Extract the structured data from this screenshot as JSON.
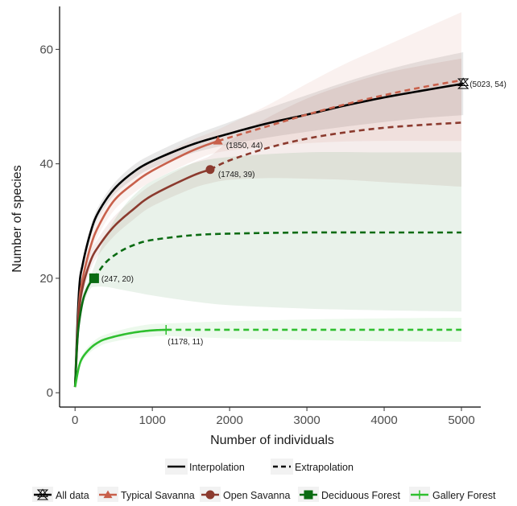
{
  "chart_data": {
    "type": "line",
    "title": "",
    "xlabel": "Number of individuals",
    "ylabel": "Number of species",
    "xlim": [
      -200,
      5250
    ],
    "ylim": [
      -2.5,
      67.5
    ],
    "x_ticks": [
      0,
      1000,
      2000,
      3000,
      4000,
      5000
    ],
    "y_ticks": [
      0,
      20,
      40,
      60
    ],
    "x_tick_labels": [
      "0",
      "1000",
      "2000",
      "3000",
      "4000",
      "5000"
    ],
    "y_tick_labels": [
      "0",
      "20",
      "40",
      "60"
    ],
    "grid": false,
    "legend_position": "bottom",
    "linetype_legend": [
      {
        "label": "Interpolation",
        "style": "solid"
      },
      {
        "label": "Extrapolation",
        "style": "dashed"
      }
    ],
    "series": [
      {
        "name": "All data",
        "color": "#000000",
        "marker": "hourglass",
        "observed": [
          5023,
          54
        ],
        "observed_label": "(5023, 54)",
        "extrapolated": false,
        "x": [
          0,
          50,
          100,
          200,
          300,
          500,
          750,
          1000,
          1500,
          2000,
          2500,
          3000,
          3500,
          4000,
          4500,
          5023
        ],
        "y": [
          1,
          17.5,
          22.5,
          28,
          31.5,
          35.5,
          38.5,
          40.5,
          43.3,
          45.3,
          47.1,
          48.6,
          50.2,
          51.6,
          52.8,
          54
        ],
        "ci_lower": [
          1,
          16.5,
          21.5,
          27,
          30.5,
          34.5,
          37.3,
          39.3,
          41.8,
          43.4,
          44.6,
          45.6,
          46.5,
          47.3,
          48,
          48.5
        ],
        "ci_upper": [
          1,
          18.5,
          23.5,
          29,
          32.5,
          36.5,
          39.7,
          41.7,
          44.8,
          47.3,
          49.7,
          52,
          54.3,
          56.3,
          58,
          59.5
        ]
      },
      {
        "name": "Typical Savanna",
        "color": "#c8604b",
        "marker": "triangle",
        "observed": [
          1850,
          44
        ],
        "observed_label": "(1850, 44)",
        "extrapolated": true,
        "x": [
          0,
          50,
          100,
          200,
          300,
          500,
          750,
          1000,
          1500,
          1850,
          2500,
          3000,
          3500,
          4000,
          4500,
          5000
        ],
        "y": [
          1,
          15,
          20,
          25.5,
          29,
          33.5,
          36.5,
          38.8,
          42.2,
          44,
          46.6,
          48.6,
          50.4,
          52,
          53.4,
          54.6
        ],
        "ci_lower": [
          1,
          13.5,
          18.5,
          24,
          27.5,
          31.8,
          34.8,
          37,
          40.3,
          42,
          43,
          43.6,
          43.9,
          44,
          44,
          44
        ],
        "ci_upper": [
          1,
          16.5,
          21.5,
          27,
          30.5,
          35.2,
          38.2,
          40.6,
          44.1,
          46,
          50.3,
          54,
          57.5,
          60.5,
          63.5,
          66.5
        ]
      },
      {
        "name": "Open Savanna",
        "color": "#8b3a2e",
        "marker": "circle",
        "observed": [
          1748,
          39
        ],
        "observed_label": "(1748, 39)",
        "extrapolated": true,
        "x": [
          0,
          50,
          100,
          200,
          300,
          500,
          750,
          1000,
          1500,
          1748,
          2000,
          2500,
          3000,
          3500,
          4000,
          4500,
          5000
        ],
        "y": [
          1,
          13.5,
          18.5,
          23,
          25.5,
          29,
          32,
          34.5,
          37.8,
          39,
          40.6,
          42.8,
          44.4,
          45.5,
          46.3,
          46.8,
          47.2
        ],
        "ci_lower": [
          1,
          12,
          17,
          21.5,
          24,
          27.3,
          30.2,
          32.6,
          35.6,
          36.6,
          37.2,
          37.5,
          37.4,
          37.2,
          36.8,
          36.4,
          36
        ],
        "ci_upper": [
          1,
          15,
          20,
          24.5,
          27,
          30.7,
          33.8,
          36.4,
          40,
          41.4,
          44,
          48.1,
          51.4,
          53.8,
          55.8,
          57.2,
          58.4
        ]
      },
      {
        "name": "Deciduous Forest",
        "color": "#0a6b12",
        "marker": "square",
        "observed": [
          247,
          20
        ],
        "observed_label": "(247, 20)",
        "extrapolated": true,
        "x": [
          0,
          25,
          50,
          100,
          150,
          200,
          247,
          400,
          600,
          800,
          1000,
          1500,
          2000,
          3000,
          4000,
          5000
        ],
        "y": [
          1,
          8,
          12,
          16,
          18,
          19.3,
          20,
          22.8,
          24.8,
          26,
          26.7,
          27.5,
          27.8,
          28,
          28,
          28
        ],
        "ci_lower": [
          1,
          7,
          11,
          15,
          17,
          18.2,
          18.5,
          18.5,
          18,
          17.5,
          17,
          16,
          15.3,
          14.7,
          14.4,
          14.2
        ],
        "ci_upper": [
          1,
          9,
          13,
          17,
          19,
          20.4,
          22,
          27.5,
          32,
          35,
          37,
          40,
          41.2,
          42,
          42,
          42
        ]
      },
      {
        "name": "Gallery Forest",
        "color": "#2fbf2f",
        "marker": "plus",
        "observed": [
          1178,
          11
        ],
        "observed_label": "(1178, 11)",
        "extrapolated": true,
        "x": [
          0,
          50,
          100,
          200,
          300,
          400,
          600,
          800,
          1000,
          1178,
          2000,
          3000,
          4000,
          5000
        ],
        "y": [
          1,
          4.5,
          6.2,
          7.8,
          8.8,
          9.4,
          10.1,
          10.6,
          10.9,
          11,
          11,
          11,
          11,
          11
        ],
        "ci_lower": [
          1,
          4,
          5.6,
          7.1,
          8,
          8.6,
          9.2,
          9.6,
          9.8,
          9.9,
          9.5,
          9.2,
          9,
          8.9
        ],
        "ci_upper": [
          1,
          5,
          6.8,
          8.5,
          9.6,
          10.2,
          11,
          11.6,
          12,
          12.1,
          12.5,
          12.8,
          13,
          13.1
        ]
      }
    ]
  }
}
